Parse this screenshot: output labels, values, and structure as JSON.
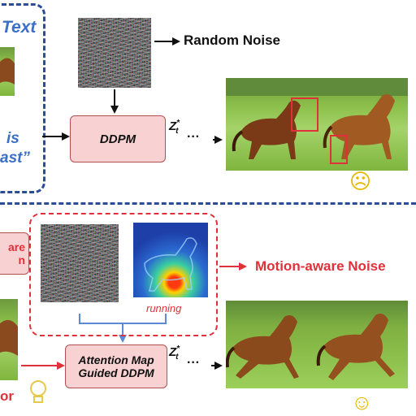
{
  "top": {
    "text_fragment": "Text",
    "caption_is": "is",
    "caption_fast": "ast”",
    "noise_label": "Random Noise",
    "ddpm_label": "DDPM",
    "zt_label": "Z",
    "zt_sup": "*",
    "zt_sub": "t",
    "ellipsis": "···",
    "face": "☹"
  },
  "bottom": {
    "left_label_line1": "are",
    "left_label_line2": "n",
    "attention_label": "running",
    "motion_noise_label": "Motion-aware Noise",
    "guided_ddpm_line1": "Attention Map",
    "guided_ddpm_line2": "Guided DDPM",
    "zt_label": "Z",
    "zt_sup": "*",
    "zt_sub": "t",
    "ellipsis": "···",
    "left_bottom_fragment": "or",
    "face": "☺"
  },
  "colors": {
    "accent_blue": "#2b4d96",
    "accent_red": "#e0303a",
    "box_pink": "#f8d2d2"
  }
}
